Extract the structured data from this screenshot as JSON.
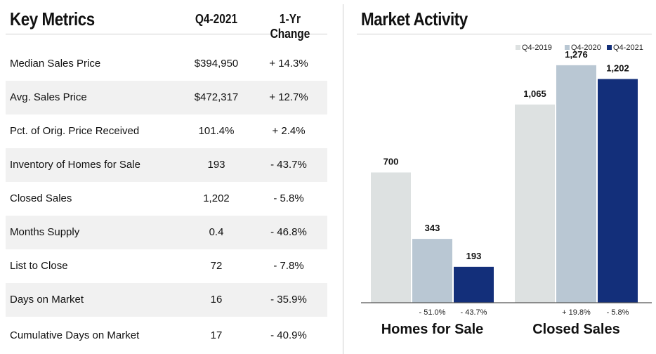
{
  "table": {
    "title": "Key Metrics",
    "col1": "Q4-2021",
    "col2": "1-Yr Change",
    "rows": [
      {
        "label": "Median Sales Price",
        "value": "$394,950",
        "change": "+ 14.3%"
      },
      {
        "label": "Avg. Sales Price",
        "value": "$472,317",
        "change": "+ 12.7%"
      },
      {
        "label": "Pct. of Orig. Price Received",
        "value": "101.4%",
        "change": "+ 2.4%"
      },
      {
        "label": "Inventory of Homes for Sale",
        "value": "193",
        "change": "- 43.7%"
      },
      {
        "label": "Closed Sales",
        "value": "1,202",
        "change": "- 5.8%"
      },
      {
        "label": "Months Supply",
        "value": "0.4",
        "change": "- 46.8%"
      },
      {
        "label": "List to Close",
        "value": "72",
        "change": "- 7.8%"
      },
      {
        "label": "Days on Market",
        "value": "16",
        "change": "- 35.9%"
      },
      {
        "label": "Cumulative Days on Market",
        "value": "17",
        "change": "- 40.9%"
      }
    ]
  },
  "chart_data": {
    "type": "bar",
    "title": "Market Activity",
    "categories": [
      "Homes for Sale",
      "Closed Sales"
    ],
    "series": [
      {
        "name": "Q4-2019",
        "values": [
          700,
          1065
        ],
        "labels": [
          "700",
          "1,065"
        ],
        "color": "#dde1e1"
      },
      {
        "name": "Q4-2020",
        "values": [
          343,
          1276
        ],
        "labels": [
          "343",
          "1,276"
        ],
        "color": "#b9c7d3"
      },
      {
        "name": "Q4-2021",
        "values": [
          193,
          1202
        ],
        "labels": [
          "193",
          "1,202"
        ],
        "color": "#132f7a"
      }
    ],
    "changes": [
      [
        "- 51.0%",
        "- 43.7%"
      ],
      [
        "+ 19.8%",
        "- 5.8%"
      ]
    ],
    "ylim": [
      0,
      1400
    ],
    "legend": "top-right",
    "grid": false
  }
}
